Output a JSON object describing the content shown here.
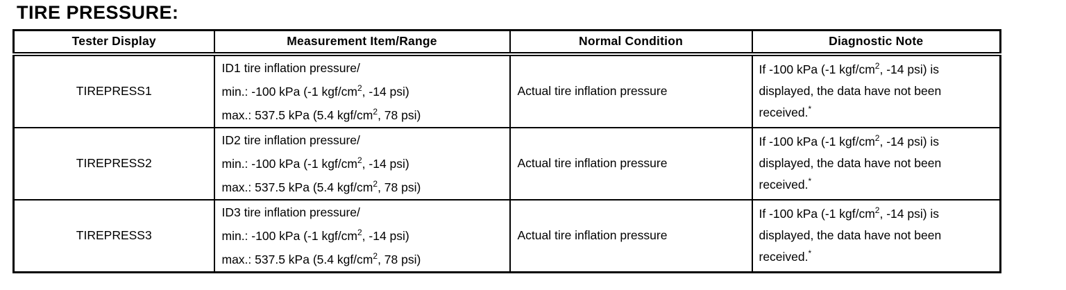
{
  "title": "TIRE PRESSURE:",
  "colors": {
    "text": "#000000",
    "background": "#ffffff",
    "border": "#000000"
  },
  "table": {
    "headers": [
      "Tester Display",
      "Measurement Item/Range",
      "Normal Condition",
      "Diagnostic Note"
    ],
    "rows": [
      {
        "tester_display": "TIREPRESS1",
        "measurement_lines": [
          "ID1 tire inflation pressure/",
          "min.: -100 kPa (-1 kgf/cm^2, -14 psi)",
          "max.: 537.5 kPa (5.4 kgf/cm^2, 78 psi)"
        ],
        "normal_condition": "Actual tire inflation pressure",
        "diagnostic_note": "If -100 kPa (-1 kgf/cm^2, -14 psi) is displayed, the data have not been received.^*"
      },
      {
        "tester_display": "TIREPRESS2",
        "measurement_lines": [
          "ID2 tire inflation pressure/",
          "min.: -100 kPa (-1 kgf/cm^2, -14 psi)",
          "max.: 537.5 kPa (5.4 kgf/cm^2, 78 psi)"
        ],
        "normal_condition": "Actual tire inflation pressure",
        "diagnostic_note": "If -100 kPa (-1 kgf/cm^2, -14 psi) is displayed, the data have not been received.^*"
      },
      {
        "tester_display": "TIREPRESS3",
        "measurement_lines": [
          "ID3 tire inflation pressure/",
          "min.: -100 kPa (-1 kgf/cm^2, -14 psi)",
          "max.: 537.5 kPa (5.4 kgf/cm^2, 78 psi)"
        ],
        "normal_condition": "Actual tire inflation pressure",
        "diagnostic_note": "If -100 kPa (-1 kgf/cm^2, -14 psi) is displayed, the data have not been received.^*"
      }
    ]
  }
}
